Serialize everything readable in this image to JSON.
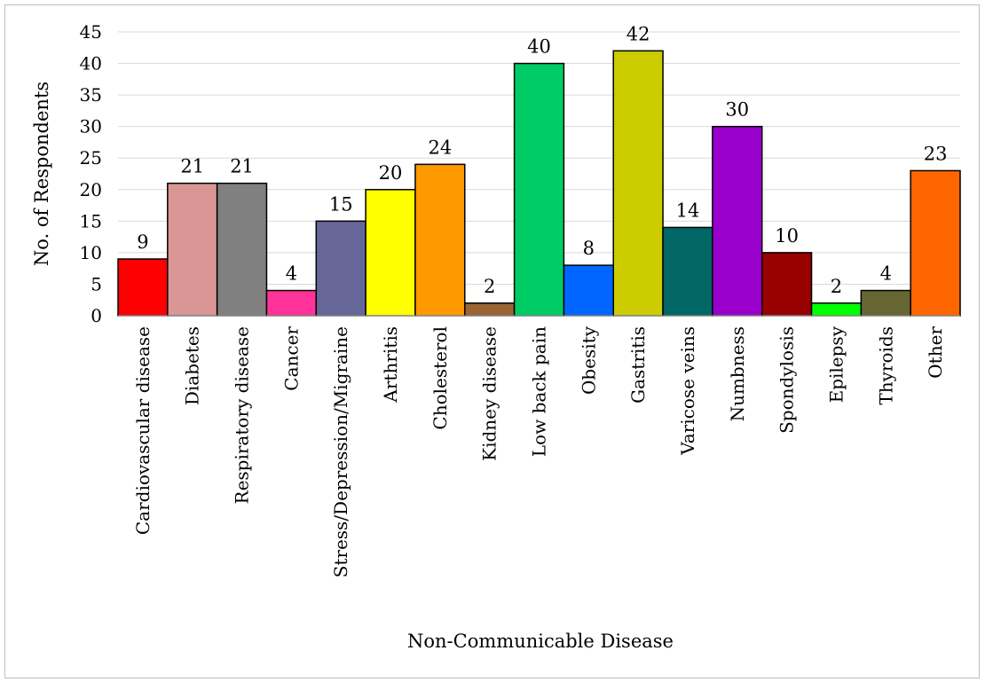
{
  "chart_data": {
    "type": "bar",
    "title": "",
    "xlabel": "Non-Communicable Disease",
    "ylabel": "No. of Respondents",
    "ylim": [
      0,
      45
    ],
    "yticks": [
      0,
      5,
      10,
      15,
      20,
      25,
      30,
      35,
      40,
      45
    ],
    "grid": true,
    "legend": "none",
    "categories": [
      "Cardiovascular disease",
      "Diabetes",
      "Respiratory disease",
      "Cancer",
      "Stress/Depression/Migraine",
      "Arthritis",
      "Cholesterol",
      "Kidney disease",
      "Low back pain",
      "Obesity",
      "Gastritis",
      "Varicose veins",
      "Numbness",
      "Spondylosis",
      "Epilepsy",
      "Thyroids",
      "Other"
    ],
    "values": [
      9,
      21,
      21,
      4,
      15,
      20,
      24,
      2,
      40,
      8,
      42,
      14,
      30,
      10,
      2,
      4,
      23
    ],
    "colors": [
      "#ff0000",
      "#d99694",
      "#808080",
      "#ff3399",
      "#666699",
      "#ffff00",
      "#ff9900",
      "#996633",
      "#00cc66",
      "#0066ff",
      "#cccc00",
      "#006666",
      "#9900cc",
      "#990000",
      "#00ff00",
      "#666633",
      "#ff6600"
    ]
  }
}
